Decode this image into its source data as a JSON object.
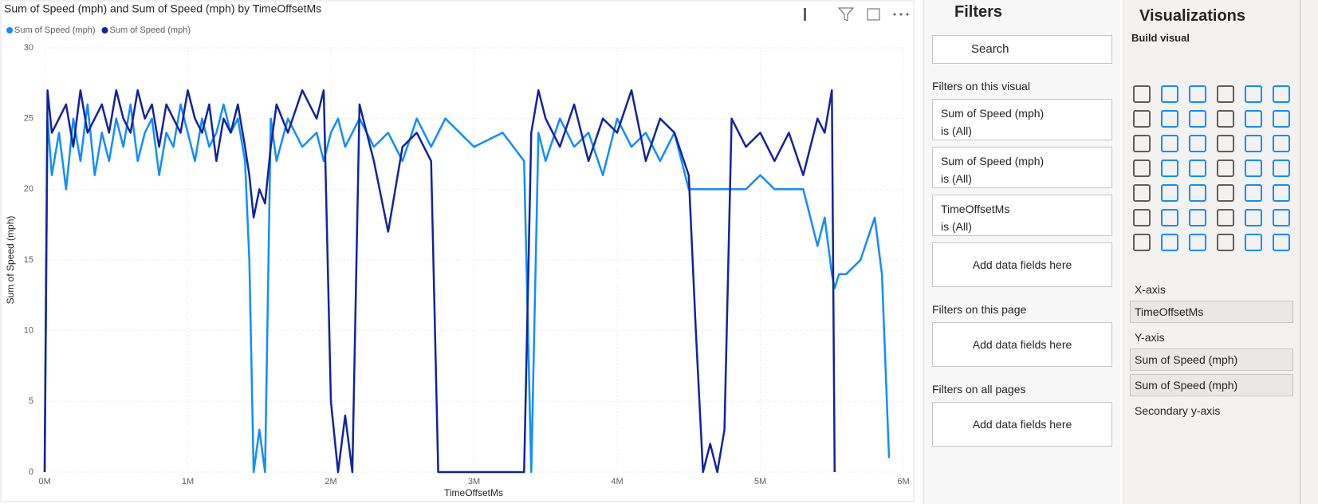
{
  "chart_data": {
    "type": "line",
    "title": "Sum of Speed (mph) and Sum of Speed (mph) by TimeOffsetMs",
    "x_label": "TimeOffsetMs",
    "y_label": "Sum of Speed (mph)",
    "x": [
      0,
      20000,
      50000,
      100000,
      150000,
      200000,
      250000,
      300000,
      350000,
      400000,
      450000,
      500000,
      550000,
      600000,
      650000,
      700000,
      750000,
      800000,
      850000,
      900000,
      950000,
      1000000,
      1050000,
      1100000,
      1150000,
      1200000,
      1250000,
      1300000,
      1350000,
      1400000,
      1430000,
      1460000,
      1500000,
      1540000,
      1580000,
      1620000,
      1700000,
      1800000,
      1900000,
      1950000,
      2000000,
      2050000,
      2100000,
      2150000,
      2200000,
      2300000,
      2400000,
      2500000,
      2600000,
      2700000,
      2750000,
      2800000,
      3000000,
      3200000,
      3350000,
      3400000,
      3450000,
      3500000,
      3600000,
      3700000,
      3800000,
      3900000,
      4000000,
      4100000,
      4200000,
      4300000,
      4400000,
      4500000,
      4550000,
      4600000,
      4650000,
      4700000,
      4750000,
      4800000,
      4900000,
      5000000,
      5100000,
      5200000,
      5300000,
      5400000,
      5450000,
      5500000,
      5520000,
      5550000,
      5600000,
      5700000,
      5800000,
      5850000,
      5900000
    ],
    "series": [
      {
        "name": "Sum of Speed (mph)",
        "color": "#118dff",
        "values": [
          0,
          25,
          21,
          24,
          20,
          25,
          22,
          26,
          21,
          24,
          22,
          25,
          23,
          26,
          22,
          24,
          25,
          21,
          24,
          23,
          26,
          24,
          22,
          25,
          23,
          24,
          26,
          24,
          25,
          22,
          15,
          0,
          3,
          0,
          25,
          22,
          25,
          23,
          24,
          22,
          24,
          25,
          23,
          24,
          25,
          23,
          24,
          22,
          25,
          23,
          24,
          25,
          23,
          24,
          22,
          0,
          24,
          22,
          25,
          23,
          24,
          21,
          25,
          23,
          24,
          22,
          24,
          20,
          20,
          20,
          20,
          20,
          20,
          20,
          20,
          21,
          20,
          20,
          20,
          16,
          18,
          14,
          13,
          14,
          14,
          15,
          18,
          14,
          1
        ]
      },
      {
        "name": "Sum of Speed (mph)",
        "color": "#12239e",
        "values": [
          0,
          27,
          24,
          25,
          26,
          23,
          27,
          24,
          25,
          26,
          24,
          27,
          25,
          24,
          27,
          25,
          26,
          23,
          26,
          25,
          24,
          27,
          25,
          24,
          26,
          22,
          25,
          24,
          26,
          23,
          21,
          18,
          20,
          19,
          23,
          26,
          24,
          27,
          25,
          27,
          5,
          0,
          4,
          0,
          26,
          22,
          17,
          23,
          24,
          22,
          0,
          0,
          0,
          0,
          0,
          24,
          27,
          25,
          23,
          26,
          22,
          25,
          24,
          27,
          22,
          25,
          24,
          21,
          10,
          0,
          2,
          0,
          3,
          25,
          23,
          24,
          22,
          24,
          21,
          25,
          24,
          27,
          0,
          null,
          null,
          null,
          null,
          null,
          null
        ]
      }
    ],
    "xlim": [
      0,
      6000000
    ],
    "ylim": [
      0,
      30
    ],
    "xticks": [
      {
        "value": 0,
        "label": "0M"
      },
      {
        "value": 1000000,
        "label": "1M"
      },
      {
        "value": 2000000,
        "label": "2M"
      },
      {
        "value": 3000000,
        "label": "3M"
      },
      {
        "value": 4000000,
        "label": "4M"
      },
      {
        "value": 5000000,
        "label": "5M"
      },
      {
        "value": 6000000,
        "label": "6M"
      }
    ],
    "yticks": [
      0,
      5,
      10,
      15,
      20,
      25,
      30
    ],
    "grid": true
  },
  "filters_pane": {
    "title": "Filters",
    "search": "Search",
    "sections": [
      {
        "title": "Filters on this visual",
        "cards": [
          {
            "field": "Sum of Speed (mph)",
            "state": "is (All)"
          },
          {
            "field": "Sum of Speed (mph)",
            "state": "is (All)"
          },
          {
            "field": "TimeOffsetMs",
            "state": "is (All)"
          }
        ],
        "add": "Add data fields here"
      },
      {
        "title": "Filters on this page",
        "add": "Add data fields here"
      },
      {
        "title": "Filters on all pages",
        "add": "Add data fields here"
      }
    ]
  },
  "visualizations_pane": {
    "title": "Visualizations",
    "subtitle": "Build visual",
    "wells": [
      {
        "label": "X-axis",
        "fields": [
          "TimeOffsetMs"
        ]
      },
      {
        "label": "Y-axis",
        "fields": [
          "Sum of Speed (mph)",
          "Sum of Speed (mph)"
        ]
      },
      {
        "label": "Secondary y-axis"
      }
    ]
  }
}
